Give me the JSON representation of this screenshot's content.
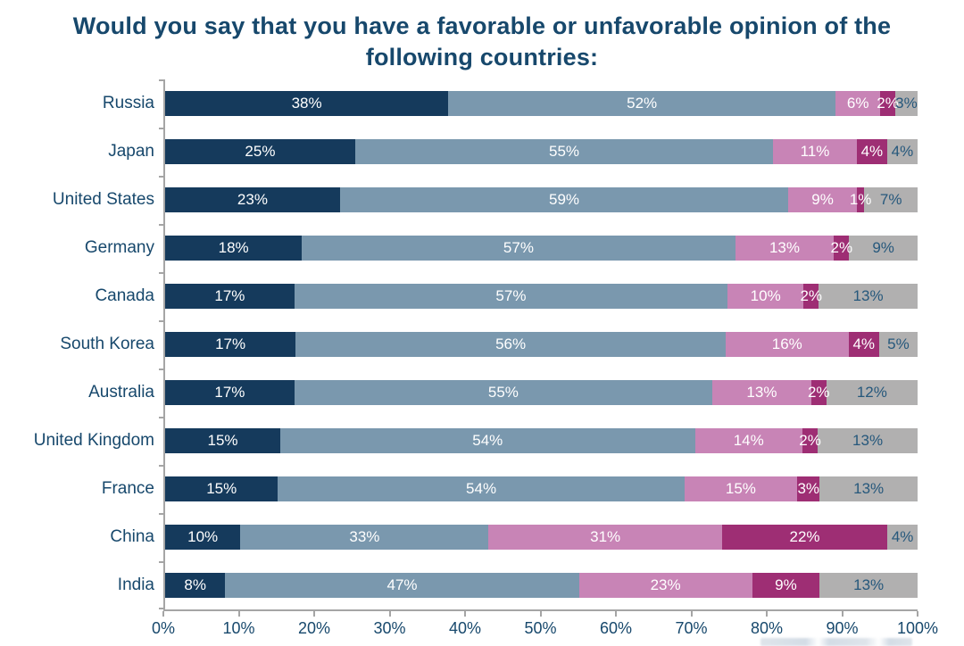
{
  "title": {
    "line1": "Would you say that you have a favorable or unfavorable opinion of the",
    "line2": "following countries:"
  },
  "style": {
    "text_color": "#17486C",
    "axis_color": "#A5A5A5",
    "gray_segment_label_color": "#26587C",
    "segment_label_color": "#FFFFFF"
  },
  "chart_data": {
    "type": "bar",
    "orientation": "horizontal",
    "stacked": true,
    "title": "Would you say that you have a favorable or unfavorable opinion of the following countries:",
    "categories": [
      "Russia",
      "Japan",
      "United States",
      "Germany",
      "Canada",
      "South Korea",
      "Australia",
      "United Kingdom",
      "France",
      "China",
      "India"
    ],
    "series": [
      {
        "name": "dark-navy-segment",
        "color": "#153A5C",
        "label_color": "#FFFFFF",
        "values": [
          38,
          25,
          23,
          18,
          17,
          17,
          17,
          15,
          15,
          10,
          8
        ]
      },
      {
        "name": "steel-blue-segment",
        "color": "#7A98AE",
        "label_color": "#FFFFFF",
        "values": [
          52,
          55,
          59,
          57,
          57,
          56,
          55,
          54,
          54,
          33,
          47
        ]
      },
      {
        "name": "pink-segment",
        "color": "#C884B6",
        "label_color": "#FFFFFF",
        "values": [
          6,
          11,
          9,
          13,
          10,
          16,
          13,
          14,
          15,
          31,
          23
        ]
      },
      {
        "name": "magenta-segment",
        "color": "#9E2E74",
        "label_color": "#FFFFFF",
        "values": [
          2,
          4,
          1,
          2,
          2,
          4,
          2,
          2,
          3,
          22,
          9
        ]
      },
      {
        "name": "gray-segment",
        "color": "#B1B0B0",
        "label_color": "#26587C",
        "values": [
          3,
          4,
          7,
          9,
          13,
          5,
          12,
          13,
          13,
          4,
          13
        ]
      }
    ],
    "value_suffix": "%",
    "x_axis": {
      "ticks": [
        "0%",
        "10%",
        "20%",
        "30%",
        "40%",
        "50%",
        "60%",
        "70%",
        "80%",
        "90%",
        "100%"
      ],
      "range": [
        0,
        100
      ]
    },
    "legend": "none",
    "grid": "off"
  }
}
